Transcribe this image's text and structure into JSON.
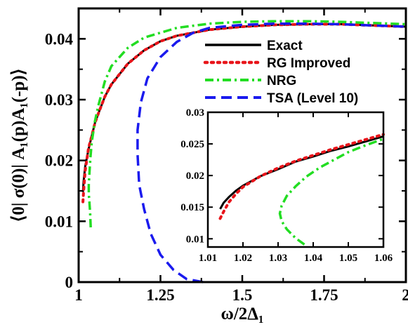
{
  "chart_data": [
    {
      "type": "line",
      "xlabel": "ω/2Δ₁",
      "ylabel": "⟨0| σ(0)| A₁(p)A₁(-p)⟩",
      "xlim": [
        1.0,
        2.0
      ],
      "ylim": [
        0.0,
        0.045
      ],
      "xticks": [
        1,
        1.25,
        1.5,
        1.75,
        2
      ],
      "xtick_labels": [
        "1",
        "1.25",
        "1.5",
        "1.75",
        "2"
      ],
      "yticks": [
        0,
        0.01,
        0.02,
        0.03,
        0.04
      ],
      "ytick_labels": [
        "0",
        "0.01",
        "0.02",
        "0.03",
        "0.04"
      ],
      "legend_position": "top-right",
      "series": [
        {
          "name": "Exact",
          "color": "#000000",
          "style": "solid",
          "x": [
            1.013,
            1.015,
            1.02,
            1.03,
            1.04,
            1.05,
            1.06,
            1.08,
            1.1,
            1.15,
            1.2,
            1.25,
            1.3,
            1.4,
            1.5,
            1.6,
            1.7,
            1.8,
            1.9,
            2.0
          ],
          "y": [
            0.0148,
            0.0165,
            0.019,
            0.0218,
            0.024,
            0.0262,
            0.0277,
            0.0305,
            0.0325,
            0.0359,
            0.0381,
            0.0396,
            0.0405,
            0.0415,
            0.042,
            0.0423,
            0.0424,
            0.0424,
            0.0422,
            0.042
          ]
        },
        {
          "name": "RG Improved",
          "color": "#e8141a",
          "style": "dotted",
          "x": [
            1.013,
            1.015,
            1.02,
            1.03,
            1.04,
            1.05,
            1.06,
            1.08,
            1.1,
            1.15,
            1.2,
            1.25,
            1.3,
            1.4,
            1.5,
            1.6,
            1.7,
            1.8,
            1.9,
            2.0
          ],
          "y": [
            0.0132,
            0.0148,
            0.0183,
            0.022,
            0.024,
            0.0262,
            0.0277,
            0.0305,
            0.0325,
            0.0359,
            0.0381,
            0.0396,
            0.0405,
            0.0415,
            0.042,
            0.0423,
            0.0424,
            0.0424,
            0.0422,
            0.042
          ]
        },
        {
          "name": "NRG",
          "color": "#22dd22",
          "style": "dashdot",
          "x": [
            1.037,
            1.035,
            1.033,
            1.031,
            1.031,
            1.033,
            1.036,
            1.04,
            1.05,
            1.06,
            1.08,
            1.1,
            1.15,
            1.2,
            1.3,
            1.4,
            1.5,
            1.6,
            1.7,
            1.8,
            1.9,
            2.0
          ],
          "y": [
            0.009,
            0.0115,
            0.013,
            0.0145,
            0.016,
            0.018,
            0.0205,
            0.023,
            0.0265,
            0.029,
            0.033,
            0.0355,
            0.0385,
            0.0402,
            0.0418,
            0.0425,
            0.0428,
            0.0429,
            0.0429,
            0.0428,
            0.0426,
            0.0424
          ]
        },
        {
          "name": "TSA (Level 10)",
          "color": "#1a1aee",
          "style": "dashed",
          "x": [
            1.38,
            1.33,
            1.29,
            1.25,
            1.22,
            1.2,
            1.185,
            1.18,
            1.18,
            1.19,
            1.21,
            1.25,
            1.3,
            1.35,
            1.4,
            1.5,
            1.6,
            1.7,
            1.8,
            1.9,
            2.0
          ],
          "y": [
            0.0,
            0.0005,
            0.002,
            0.0045,
            0.008,
            0.012,
            0.016,
            0.021,
            0.025,
            0.0295,
            0.0335,
            0.037,
            0.0395,
            0.041,
            0.0418,
            0.0423,
            0.0425,
            0.0425,
            0.0424,
            0.0422,
            0.042
          ]
        }
      ]
    },
    {
      "type": "line",
      "xlabel": "",
      "ylabel": "",
      "xlim": [
        1.01,
        1.06
      ],
      "ylim": [
        0.0087,
        0.03
      ],
      "xticks": [
        1.01,
        1.02,
        1.03,
        1.04,
        1.05,
        1.06
      ],
      "xtick_labels": [
        "1.01",
        "1.02",
        "1.03",
        "1.04",
        "1.05",
        "1.06"
      ],
      "yticks": [
        0.01,
        0.015,
        0.02,
        0.025,
        0.03
      ],
      "ytick_labels": [
        "0.01",
        "0.015",
        "0.02",
        "0.025",
        "0.03"
      ],
      "series": [
        {
          "name": "Exact",
          "color": "#000000",
          "style": "solid",
          "x": [
            1.0135,
            1.0145,
            1.016,
            1.018,
            1.02,
            1.025,
            1.03,
            1.035,
            1.04,
            1.045,
            1.05,
            1.055,
            1.06
          ],
          "y": [
            0.0147,
            0.0157,
            0.0166,
            0.0176,
            0.0184,
            0.0199,
            0.021,
            0.0222,
            0.023,
            0.0239,
            0.0246,
            0.0254,
            0.0262
          ]
        },
        {
          "name": "RG Improved",
          "color": "#e8141a",
          "style": "dotted",
          "x": [
            1.0135,
            1.0145,
            1.016,
            1.018,
            1.02,
            1.025,
            1.03,
            1.035,
            1.04,
            1.045,
            1.05,
            1.055,
            1.06
          ],
          "y": [
            0.0132,
            0.0143,
            0.0158,
            0.0171,
            0.0182,
            0.0199,
            0.0212,
            0.0223,
            0.0232,
            0.0241,
            0.0249,
            0.0257,
            0.0265
          ]
        },
        {
          "name": "NRG",
          "color": "#22dd22",
          "style": "dashdot",
          "x": [
            1.0375,
            1.035,
            1.0325,
            1.031,
            1.0305,
            1.031,
            1.0325,
            1.035,
            1.038,
            1.042,
            1.046,
            1.05,
            1.055,
            1.06
          ],
          "y": [
            0.0091,
            0.0101,
            0.0115,
            0.0128,
            0.014,
            0.0152,
            0.0168,
            0.0183,
            0.0198,
            0.0213,
            0.0225,
            0.0237,
            0.0248,
            0.0258
          ]
        }
      ]
    }
  ]
}
